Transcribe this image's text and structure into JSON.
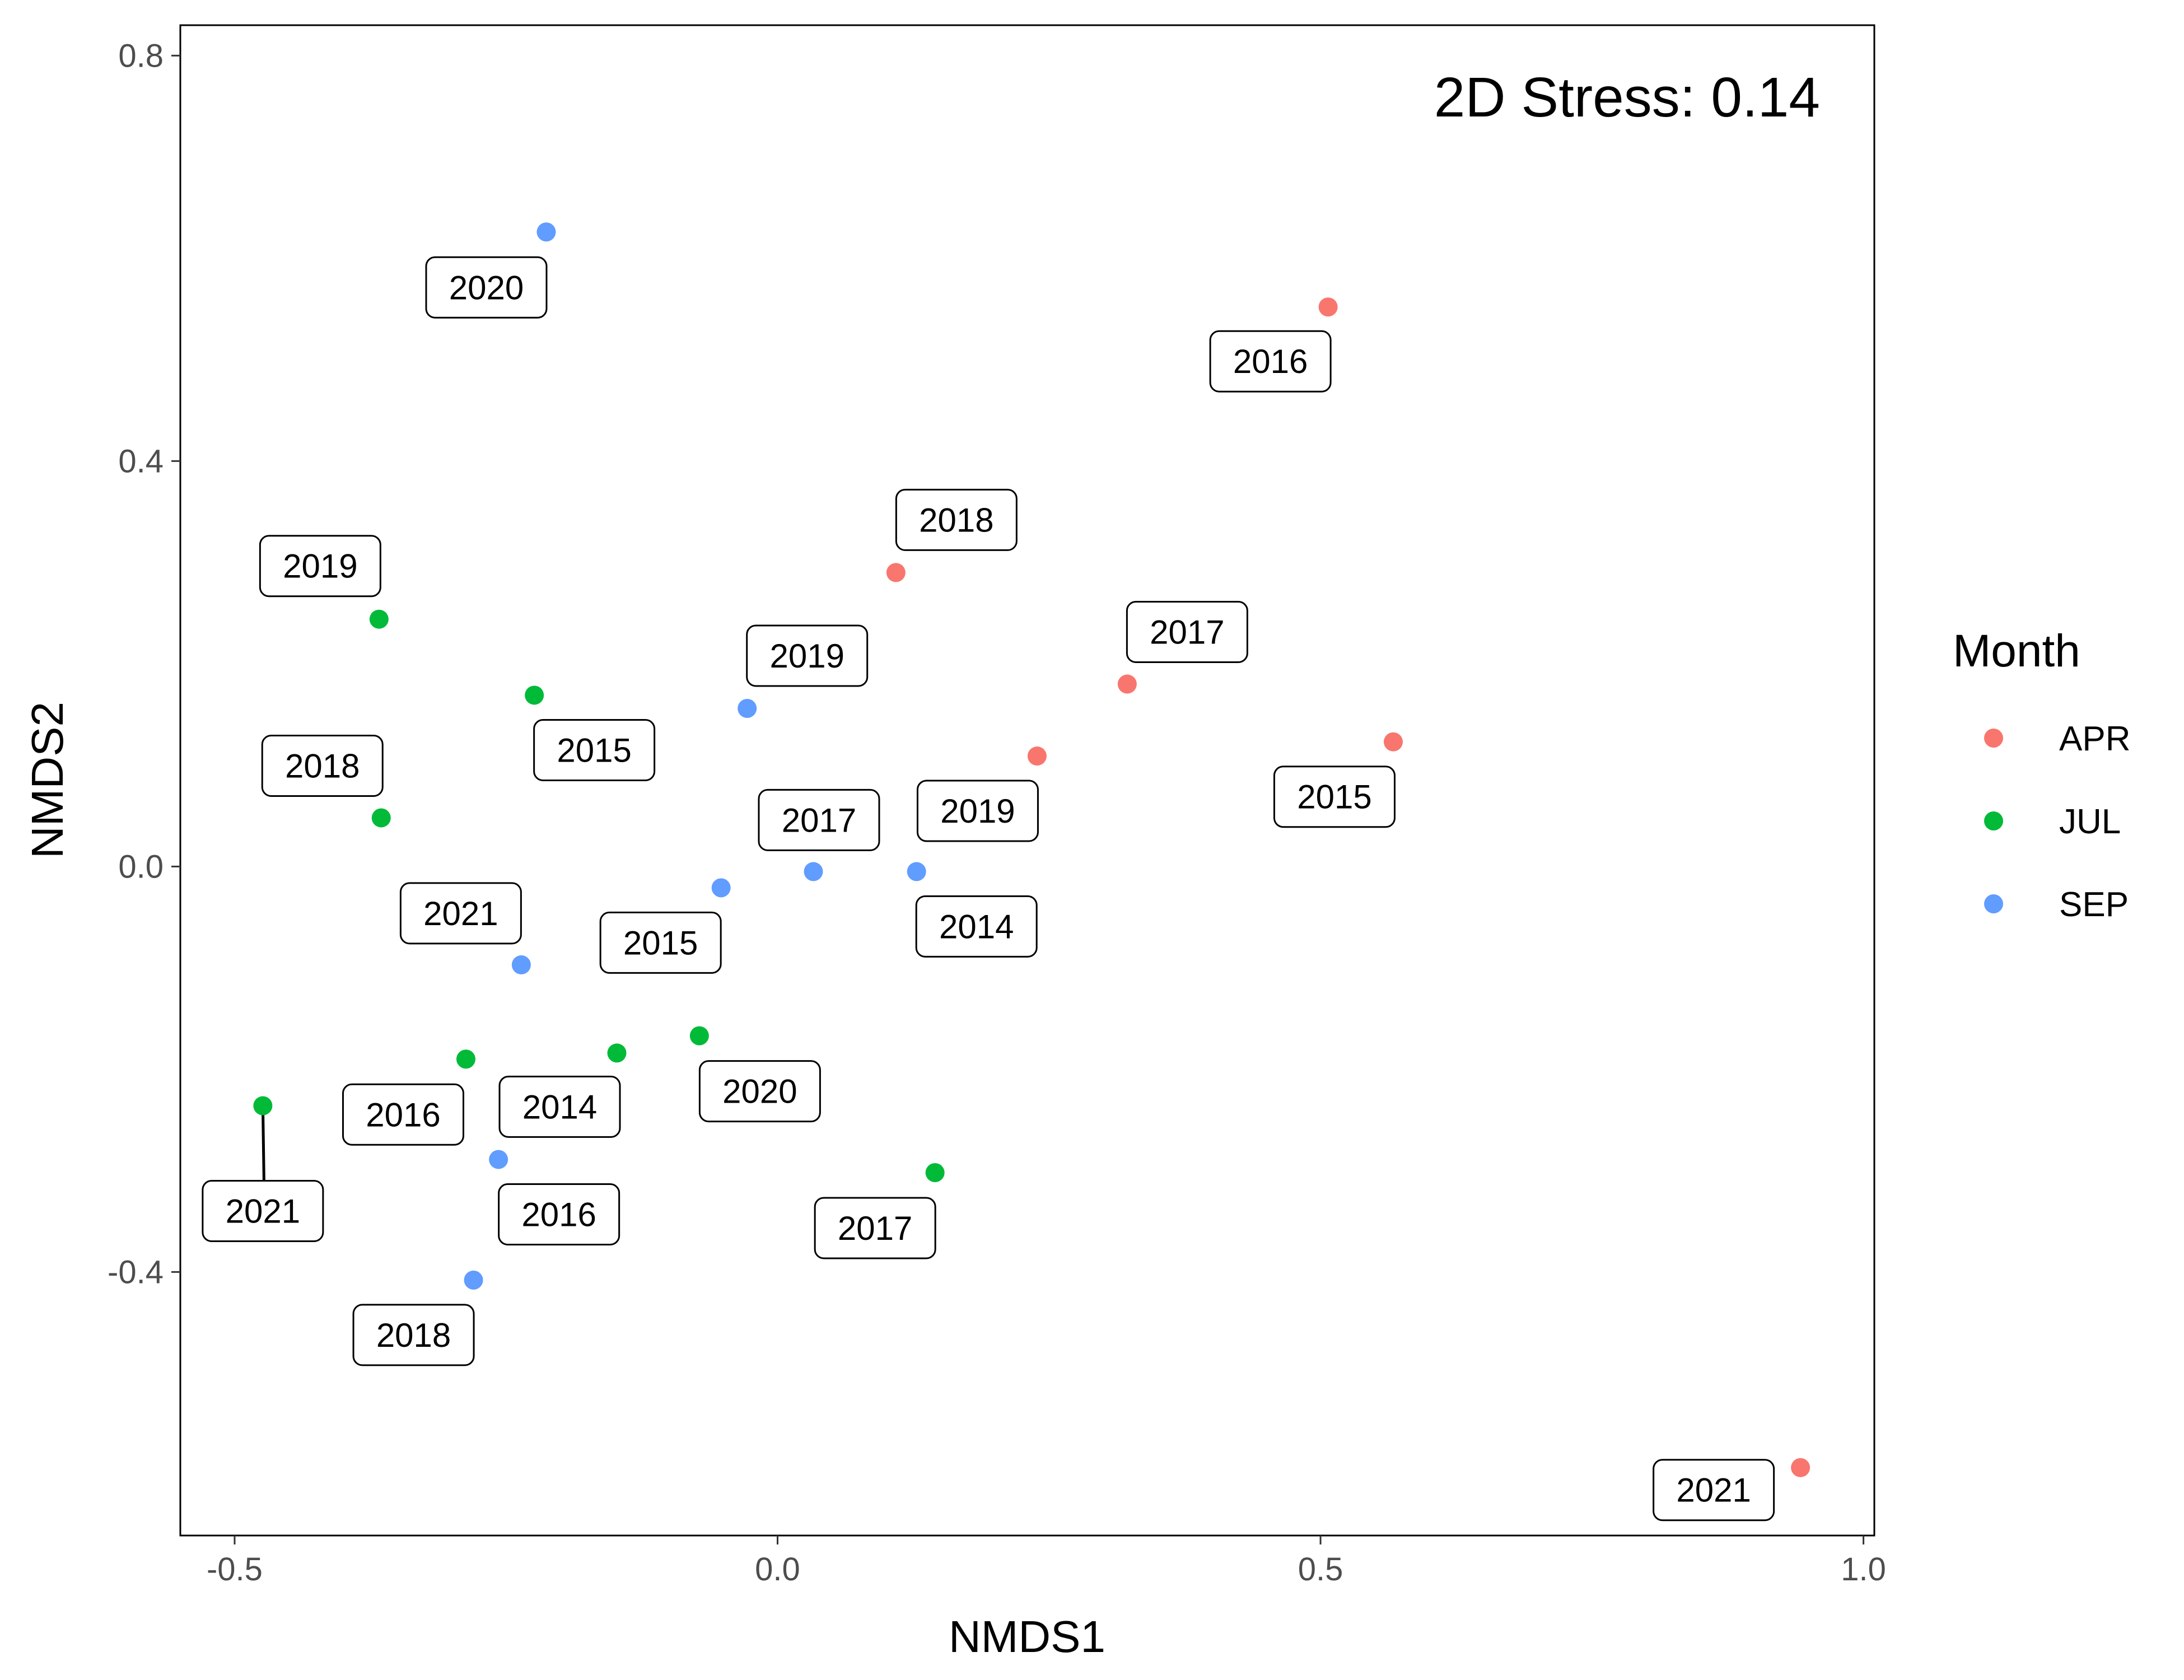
{
  "chart_data": {
    "type": "scatter",
    "xlabel": "NMDS1",
    "ylabel": "NMDS2",
    "xlim": [
      -0.55,
      1.01
    ],
    "ylim": [
      -0.66,
      0.83
    ],
    "xticks": [
      -0.5,
      0.0,
      0.5,
      1.0
    ],
    "xtick_labels": [
      "-0.5",
      "0.0",
      "0.5",
      "1.0"
    ],
    "yticks": [
      -0.4,
      0.0,
      0.4,
      0.8
    ],
    "ytick_labels": [
      "-0.4",
      "0.0",
      "0.4",
      "0.8"
    ],
    "grid": false,
    "annotation": "2D Stress: 0.14",
    "legend": {
      "title": "Month",
      "placement": "right"
    },
    "series": [
      {
        "name": "APR",
        "color": "#F8766D",
        "points": [
          {
            "x": 0.507,
            "y": 0.552,
            "label": "2016"
          },
          {
            "x": 0.109,
            "y": 0.29,
            "label": "2018"
          },
          {
            "x": 0.322,
            "y": 0.18,
            "label": "2017"
          },
          {
            "x": 0.239,
            "y": 0.109,
            "label": "2019"
          },
          {
            "x": 0.567,
            "y": 0.123,
            "label": "2015"
          },
          {
            "x": 0.942,
            "y": -0.593,
            "label": "2021"
          }
        ]
      },
      {
        "name": "JUL",
        "color": "#00BA38",
        "points": [
          {
            "x": -0.367,
            "y": 0.244,
            "label": "2019"
          },
          {
            "x": -0.224,
            "y": 0.169,
            "label": "2015"
          },
          {
            "x": -0.365,
            "y": 0.048,
            "label": "2018"
          },
          {
            "x": -0.287,
            "y": -0.19,
            "label": "2016"
          },
          {
            "x": -0.148,
            "y": -0.184,
            "label": "2014"
          },
          {
            "x": -0.072,
            "y": -0.167,
            "label": "2020"
          },
          {
            "x": -0.474,
            "y": -0.236,
            "label": "2021"
          },
          {
            "x": 0.145,
            "y": -0.302,
            "label": "2017"
          }
        ]
      },
      {
        "name": "SEP",
        "color": "#619CFF",
        "points": [
          {
            "x": -0.213,
            "y": 0.626,
            "label": "2020"
          },
          {
            "x": -0.028,
            "y": 0.156,
            "label": "2019"
          },
          {
            "x": 0.033,
            "y": -0.005,
            "label": "2017"
          },
          {
            "x": 0.128,
            "y": -0.005,
            "label": "2014"
          },
          {
            "x": -0.052,
            "y": -0.021,
            "label": "2015"
          },
          {
            "x": -0.236,
            "y": -0.097,
            "label": "2021"
          },
          {
            "x": -0.257,
            "y": -0.289,
            "label": "2016"
          },
          {
            "x": -0.28,
            "y": -0.408,
            "label": "2018"
          }
        ]
      }
    ]
  }
}
